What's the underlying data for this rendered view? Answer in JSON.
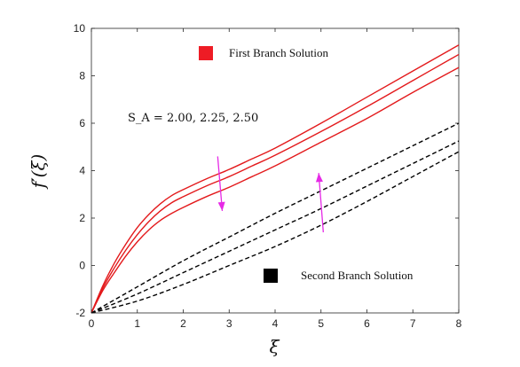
{
  "chart_data": {
    "type": "line",
    "xlabel": "ξ",
    "ylabel": "f′(ξ)",
    "xlim": [
      0,
      8
    ],
    "ylim": [
      -2,
      10
    ],
    "xticks": [
      0,
      1,
      2,
      3,
      4,
      5,
      6,
      7,
      8
    ],
    "yticks": [
      -2,
      0,
      2,
      4,
      6,
      8,
      10
    ],
    "grid": false,
    "legend": [
      {
        "label": "First Branch Solution",
        "color": "#ee1c25",
        "marker": "square"
      },
      {
        "label": "Second Branch Solution",
        "color": "#000000",
        "marker": "square"
      }
    ],
    "annotation": "S_A = 2.00, 2.25, 2.50",
    "arrow_color": "#e62ae6",
    "series": [
      {
        "branch": "first",
        "color": "#e31a1c",
        "style": "solid",
        "x": [
          0,
          0.25,
          0.5,
          0.75,
          1.0,
          1.25,
          1.5,
          1.75,
          2.0,
          2.5,
          3.0,
          3.5,
          4.0,
          5.0,
          6.0,
          7.0,
          8.0
        ],
        "y": [
          -2,
          -0.85,
          0.1,
          0.9,
          1.6,
          2.15,
          2.6,
          2.95,
          3.2,
          3.65,
          4.05,
          4.5,
          4.95,
          6.0,
          7.1,
          8.2,
          9.3
        ]
      },
      {
        "branch": "first",
        "color": "#e31a1c",
        "style": "solid",
        "x": [
          0,
          0.25,
          0.5,
          0.75,
          1.0,
          1.25,
          1.5,
          1.75,
          2.0,
          2.5,
          3.0,
          3.5,
          4.0,
          5.0,
          6.0,
          7.0,
          8.0
        ],
        "y": [
          -2,
          -0.95,
          -0.1,
          0.65,
          1.3,
          1.85,
          2.3,
          2.65,
          2.9,
          3.35,
          3.75,
          4.2,
          4.65,
          5.65,
          6.7,
          7.8,
          8.9
        ]
      },
      {
        "branch": "first",
        "color": "#e31a1c",
        "style": "solid",
        "x": [
          0,
          0.25,
          0.5,
          0.75,
          1.0,
          1.25,
          1.5,
          1.75,
          2.0,
          2.5,
          3.0,
          3.5,
          4.0,
          5.0,
          6.0,
          7.0,
          8.0
        ],
        "y": [
          -2,
          -1.05,
          -0.3,
          0.4,
          1.0,
          1.5,
          1.9,
          2.2,
          2.45,
          2.9,
          3.3,
          3.75,
          4.2,
          5.2,
          6.2,
          7.3,
          8.35
        ]
      },
      {
        "branch": "second",
        "color": "#000000",
        "style": "dashed",
        "x": [
          0,
          1,
          2,
          3,
          4,
          5,
          6,
          7,
          8
        ],
        "y": [
          -2,
          -0.9,
          0.2,
          1.2,
          2.2,
          3.15,
          4.1,
          5.05,
          6.0
        ]
      },
      {
        "branch": "second",
        "color": "#000000",
        "style": "dashed",
        "x": [
          0,
          1,
          2,
          3,
          4,
          5,
          6,
          7,
          8
        ],
        "y": [
          -2,
          -1.2,
          -0.3,
          0.6,
          1.5,
          2.4,
          3.35,
          4.3,
          5.25
        ]
      },
      {
        "branch": "second",
        "color": "#000000",
        "style": "dashed",
        "x": [
          0,
          1,
          2,
          3,
          4,
          5,
          6,
          7,
          8
        ],
        "y": [
          -2,
          -1.5,
          -0.8,
          0.0,
          0.8,
          1.7,
          2.7,
          3.75,
          4.8
        ]
      }
    ],
    "arrows": [
      {
        "direction": "down",
        "x1": 2.75,
        "y1": 4.6,
        "x2": 2.85,
        "y2": 2.3
      },
      {
        "direction": "up",
        "x1": 5.05,
        "y1": 1.4,
        "x2": 4.95,
        "y2": 3.9
      }
    ],
    "legend_positions": {},
    "annotation_position": {}
  }
}
